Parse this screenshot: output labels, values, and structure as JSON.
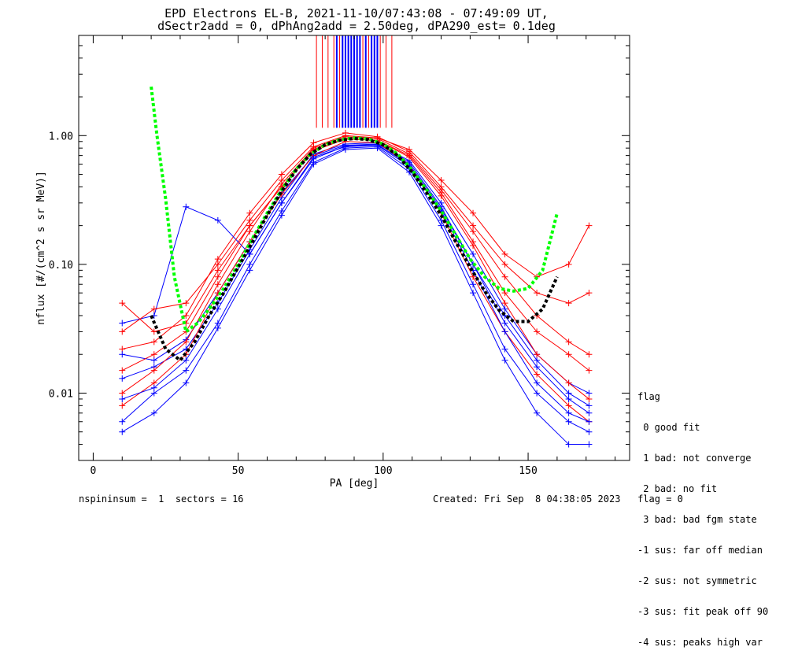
{
  "chart_data": {
    "type": "line",
    "title": "EPD Electrons EL-B, 2021-11-10/07:43:08 - 07:49:09 UT,",
    "subtitle": "dSectr2add = 0, dPhAng2add = 2.50deg, dPA290_est=   0.1deg",
    "xlabel": "PA [deg]",
    "ylabel": "nflux [#/(cm^2 s sr MeV)]",
    "xlim": [
      -5,
      185
    ],
    "ylim": [
      0.003,
      6.0
    ],
    "yscale": "log",
    "xticks": [
      0,
      50,
      100,
      150
    ],
    "xtick_labels": [
      "0",
      "50",
      "100",
      "150"
    ],
    "yticks": [
      0.01,
      0.1,
      1.0
    ],
    "ytick_labels": [
      "0.01",
      "0.10",
      "1.00"
    ],
    "grid": false,
    "pa_x": [
      10,
      21,
      32,
      43,
      54,
      65,
      76,
      87,
      98,
      109,
      120,
      131,
      142,
      153,
      164,
      171
    ],
    "series": [
      {
        "color": "#0000ff",
        "marker": "+",
        "values": [
          0.013,
          0.016,
          0.022,
          0.05,
          0.13,
          0.33,
          0.72,
          0.86,
          0.88,
          0.62,
          0.28,
          0.1,
          0.035,
          0.016,
          0.009,
          0.007
        ]
      },
      {
        "color": "#ff0000",
        "marker": "+",
        "values": [
          0.05,
          0.03,
          0.035,
          0.09,
          0.2,
          0.4,
          0.78,
          0.95,
          0.92,
          0.7,
          0.36,
          0.15,
          0.06,
          0.03,
          0.02,
          0.015
        ]
      },
      {
        "color": "#0000ff",
        "marker": "+",
        "values": [
          0.006,
          0.01,
          0.015,
          0.035,
          0.1,
          0.26,
          0.62,
          0.8,
          0.82,
          0.55,
          0.22,
          0.07,
          0.022,
          0.01,
          0.006,
          0.005
        ]
      },
      {
        "color": "#ff0000",
        "marker": "+",
        "values": [
          0.022,
          0.025,
          0.04,
          0.11,
          0.25,
          0.5,
          0.88,
          1.05,
          0.98,
          0.75,
          0.4,
          0.2,
          0.1,
          0.06,
          0.05,
          0.06
        ]
      },
      {
        "color": "#0000ff",
        "marker": "+",
        "values": [
          0.02,
          0.018,
          0.026,
          0.06,
          0.15,
          0.36,
          0.7,
          0.84,
          0.86,
          0.64,
          0.3,
          0.12,
          0.045,
          0.02,
          0.012,
          0.01
        ]
      },
      {
        "color": "#ff0000",
        "marker": "+",
        "values": [
          0.008,
          0.012,
          0.02,
          0.06,
          0.15,
          0.35,
          0.7,
          0.9,
          0.88,
          0.6,
          0.25,
          0.08,
          0.03,
          0.014,
          0.008,
          0.006
        ]
      },
      {
        "color": "#0000ff",
        "marker": "+",
        "values": [
          0.035,
          0.04,
          0.28,
          0.22,
          0.12,
          0.3,
          0.68,
          0.82,
          0.84,
          0.58,
          0.26,
          0.09,
          0.03,
          0.012,
          0.007,
          0.006
        ]
      },
      {
        "color": "#ff0000",
        "marker": "+",
        "values": [
          0.01,
          0.015,
          0.025,
          0.07,
          0.18,
          0.42,
          0.8,
          0.98,
          0.95,
          0.72,
          0.38,
          0.18,
          0.08,
          0.04,
          0.025,
          0.02
        ]
      },
      {
        "color": "#0000ff",
        "marker": "+",
        "values": [
          0.009,
          0.011,
          0.018,
          0.045,
          0.12,
          0.3,
          0.66,
          0.83,
          0.85,
          0.6,
          0.27,
          0.1,
          0.04,
          0.018,
          0.01,
          0.008
        ]
      },
      {
        "color": "#ff0000",
        "marker": "+",
        "values": [
          0.03,
          0.045,
          0.05,
          0.1,
          0.22,
          0.45,
          0.82,
          1.0,
          0.96,
          0.78,
          0.45,
          0.25,
          0.12,
          0.08,
          0.1,
          0.2
        ]
      },
      {
        "color": "#0000ff",
        "marker": "+",
        "values": [
          0.005,
          0.007,
          0.012,
          0.032,
          0.09,
          0.24,
          0.6,
          0.78,
          0.8,
          0.52,
          0.2,
          0.06,
          0.018,
          0.007,
          0.004,
          0.004
        ]
      },
      {
        "color": "#ff0000",
        "marker": "+",
        "values": [
          0.015,
          0.02,
          0.03,
          0.08,
          0.2,
          0.4,
          0.76,
          0.94,
          0.92,
          0.68,
          0.34,
          0.14,
          0.05,
          0.02,
          0.012,
          0.009
        ]
      }
    ],
    "fits": [
      {
        "color": "#00ff00",
        "style": "dotted",
        "x": [
          20,
          22,
          25,
          28,
          32,
          36,
          40,
          45,
          50,
          55,
          60,
          65,
          70,
          75,
          80,
          85,
          90,
          95,
          100,
          105,
          110,
          115,
          120,
          125,
          130,
          135,
          140,
          145,
          150,
          155,
          160
        ],
        "y": [
          2.4,
          1.0,
          0.32,
          0.08,
          0.03,
          0.035,
          0.045,
          0.065,
          0.1,
          0.16,
          0.25,
          0.38,
          0.55,
          0.72,
          0.85,
          0.93,
          0.96,
          0.94,
          0.86,
          0.72,
          0.54,
          0.38,
          0.26,
          0.17,
          0.11,
          0.08,
          0.065,
          0.062,
          0.065,
          0.09,
          0.25
        ]
      },
      {
        "color": "#000000",
        "style": "dotted",
        "x": [
          20,
          25,
          30,
          35,
          40,
          45,
          50,
          55,
          60,
          65,
          70,
          75,
          80,
          85,
          90,
          95,
          100,
          105,
          110,
          115,
          120,
          125,
          130,
          135,
          140,
          145,
          150,
          155,
          160
        ],
        "y": [
          0.04,
          0.022,
          0.018,
          0.025,
          0.04,
          0.06,
          0.095,
          0.15,
          0.24,
          0.37,
          0.54,
          0.72,
          0.85,
          0.92,
          0.95,
          0.93,
          0.85,
          0.7,
          0.52,
          0.36,
          0.24,
          0.15,
          0.095,
          0.062,
          0.044,
          0.036,
          0.036,
          0.045,
          0.08
        ]
      }
    ],
    "saturated_columns": [
      {
        "color": "#ff0000",
        "x": [
          77,
          79,
          81,
          83,
          85,
          93,
          95,
          99,
          101,
          103
        ]
      },
      {
        "color": "#0000ff",
        "x": [
          84,
          86,
          87,
          88,
          89,
          90,
          91,
          92,
          94,
          96,
          97,
          98
        ]
      }
    ]
  },
  "legend": {
    "title": "flag",
    "items": [
      " 0 good fit",
      " 1 bad: not converge",
      " 2 bad: no fit",
      " 3 bad: bad fgm state",
      "-1 sus: far off median",
      "-2 sus: not symmetric",
      "-3 sus: fit peak off 90",
      "-4 sus: peaks high var"
    ]
  },
  "footer": {
    "left": "nspininsum =  1  sectors = 16",
    "right": "Created: Fri Sep  8 04:38:05 2023   flag = 0"
  }
}
